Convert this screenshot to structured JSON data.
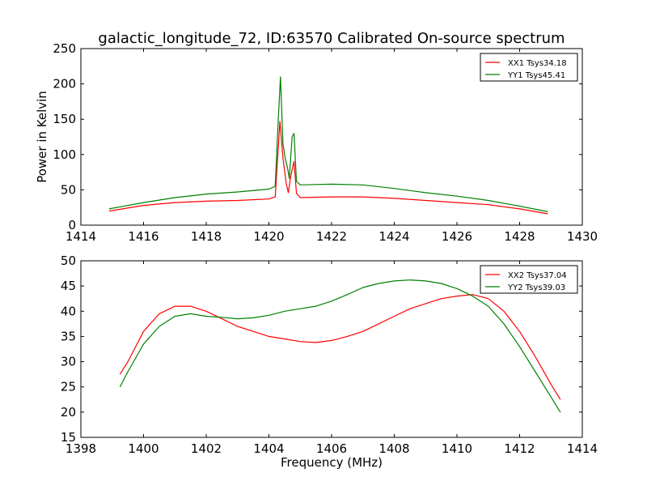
{
  "chart_data": [
    {
      "type": "line",
      "title": "galactic_longitude_72, ID:63570 Calibrated On-source spectrum",
      "xlabel": "",
      "ylabel": "Power in Kelvin",
      "xlim": [
        1414,
        1430
      ],
      "ylim": [
        0,
        250
      ],
      "xticks": [
        1414,
        1416,
        1418,
        1420,
        1422,
        1424,
        1426,
        1428,
        1430
      ],
      "yticks": [
        0,
        50,
        100,
        150,
        200,
        250
      ],
      "legend": "top-right",
      "series": [
        {
          "name": "XX1 Tsys34.18",
          "color": "#ff0000",
          "x": [
            1414.9,
            1416,
            1417,
            1418,
            1419,
            1420,
            1420.2,
            1420.3,
            1420.35,
            1420.45,
            1420.55,
            1420.62,
            1420.7,
            1420.8,
            1420.88,
            1421,
            1422,
            1423,
            1424,
            1425,
            1426,
            1427,
            1428,
            1428.9
          ],
          "y": [
            20,
            28,
            32,
            34,
            35,
            37,
            40,
            110,
            147,
            95,
            60,
            46,
            70,
            90,
            45,
            39,
            40,
            40,
            38,
            35,
            32,
            29,
            23,
            16
          ]
        },
        {
          "name": "YY1 Tsys45.41",
          "color": "#008000",
          "x": [
            1414.9,
            1416,
            1417,
            1418,
            1419,
            1420,
            1420.2,
            1420.3,
            1420.37,
            1420.45,
            1420.52,
            1420.6,
            1420.65,
            1420.74,
            1420.8,
            1420.88,
            1421,
            1422,
            1423,
            1424,
            1425,
            1426,
            1427,
            1428,
            1428.9
          ],
          "y": [
            23,
            32,
            39,
            44,
            47,
            51,
            55,
            150,
            210,
            115,
            95,
            80,
            66,
            125,
            130,
            62,
            57,
            58,
            57,
            52,
            46,
            41,
            35,
            27,
            19
          ]
        }
      ]
    },
    {
      "type": "line",
      "title": "",
      "xlabel": "Frequency (MHz)",
      "ylabel": "",
      "xlim": [
        1398,
        1414
      ],
      "ylim": [
        15,
        50
      ],
      "xticks": [
        1398,
        1400,
        1402,
        1404,
        1406,
        1408,
        1410,
        1412,
        1414
      ],
      "yticks": [
        15,
        20,
        25,
        30,
        35,
        40,
        45,
        50
      ],
      "legend": "top-right",
      "series": [
        {
          "name": "XX2 Tsys37.04",
          "color": "#ff0000",
          "x": [
            1399.25,
            1399.5,
            1400,
            1400.5,
            1401,
            1401.5,
            1402,
            1402.5,
            1403,
            1403.5,
            1404,
            1404.5,
            1405,
            1405.5,
            1406,
            1406.5,
            1407,
            1407.5,
            1408,
            1408.5,
            1409,
            1409.5,
            1410,
            1410.5,
            1411,
            1411.5,
            1412,
            1412.5,
            1413,
            1413.3
          ],
          "y": [
            27.5,
            30,
            36,
            39.5,
            41,
            41,
            40,
            38.5,
            37,
            36,
            35,
            34.5,
            34,
            33.8,
            34.2,
            35,
            36,
            37.5,
            39,
            40.5,
            41.5,
            42.5,
            43,
            43.3,
            42.5,
            40,
            36,
            31,
            25.5,
            22.5
          ]
        },
        {
          "name": "YY2 Tsys39.03",
          "color": "#008000",
          "x": [
            1399.25,
            1399.5,
            1400,
            1400.5,
            1401,
            1401.5,
            1402,
            1402.5,
            1403,
            1403.5,
            1404,
            1404.5,
            1405,
            1405.5,
            1406,
            1406.5,
            1407,
            1407.5,
            1408,
            1408.5,
            1409,
            1409.5,
            1410,
            1410.5,
            1411,
            1411.5,
            1412,
            1412.5,
            1413,
            1413.3
          ],
          "y": [
            25,
            28,
            33.5,
            37,
            39,
            39.5,
            39,
            38.8,
            38.5,
            38.7,
            39.2,
            40,
            40.5,
            41,
            42,
            43.3,
            44.7,
            45.5,
            46,
            46.2,
            46,
            45.5,
            44.5,
            43,
            41,
            37.5,
            33,
            28,
            23,
            20
          ]
        }
      ]
    }
  ]
}
